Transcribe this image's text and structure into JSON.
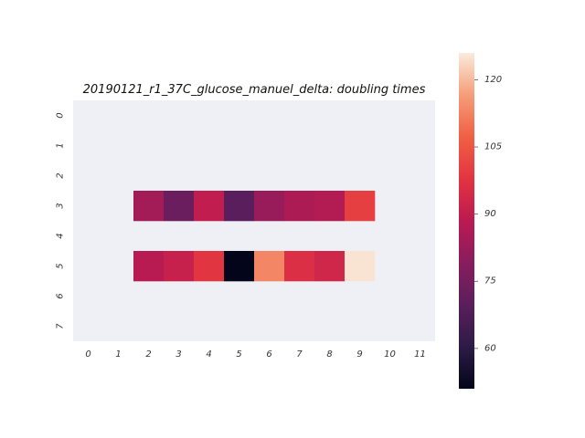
{
  "chart_data": {
    "type": "heatmap",
    "title": "20190121_r1_37C_glucose_manuel_delta: doubling times",
    "xlabel": "",
    "ylabel": "",
    "x_categories": [
      "0",
      "1",
      "2",
      "3",
      "4",
      "5",
      "6",
      "7",
      "8",
      "9",
      "10",
      "11"
    ],
    "y_categories": [
      "0",
      "1",
      "2",
      "3",
      "4",
      "5",
      "6",
      "7"
    ],
    "missing_color": "#eff0f5",
    "colormap": "rocket",
    "colorbar": {
      "vmin": 51,
      "vmax": 126,
      "ticks": [
        "60",
        "75",
        "90",
        "105",
        "120"
      ]
    },
    "cells": [
      {
        "row": 3,
        "col": 2,
        "value": 84
      },
      {
        "row": 3,
        "col": 3,
        "value": 73
      },
      {
        "row": 3,
        "col": 4,
        "value": 90
      },
      {
        "row": 3,
        "col": 5,
        "value": 70
      },
      {
        "row": 3,
        "col": 6,
        "value": 82
      },
      {
        "row": 3,
        "col": 7,
        "value": 86
      },
      {
        "row": 3,
        "col": 8,
        "value": 87
      },
      {
        "row": 3,
        "col": 9,
        "value": 100
      },
      {
        "row": 5,
        "col": 2,
        "value": 88
      },
      {
        "row": 5,
        "col": 3,
        "value": 91
      },
      {
        "row": 5,
        "col": 4,
        "value": 98
      },
      {
        "row": 5,
        "col": 5,
        "value": 51
      },
      {
        "row": 5,
        "col": 6,
        "value": 113
      },
      {
        "row": 5,
        "col": 7,
        "value": 96
      },
      {
        "row": 5,
        "col": 8,
        "value": 93
      },
      {
        "row": 5,
        "col": 9,
        "value": 125
      }
    ]
  }
}
